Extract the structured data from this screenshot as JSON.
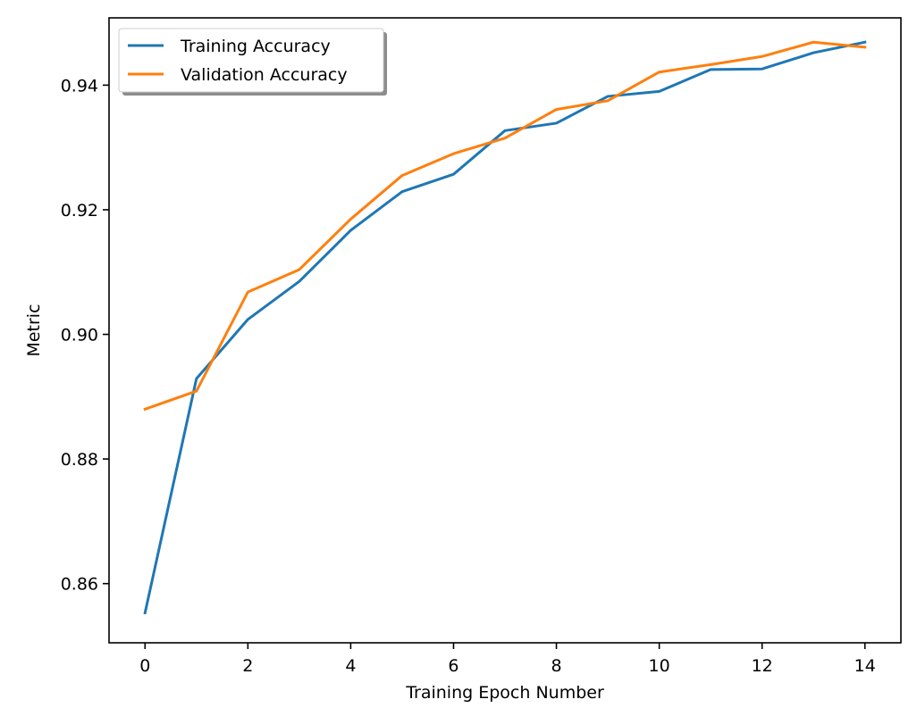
{
  "chart_data": {
    "type": "line",
    "title": "",
    "xlabel": "Training Epoch Number",
    "ylabel": "Metric",
    "xlim": [
      -0.7,
      14.7
    ],
    "ylim": [
      0.8505,
      0.9508
    ],
    "xticks": [
      0,
      2,
      4,
      6,
      8,
      10,
      12,
      14
    ],
    "xtick_labels": [
      "0",
      "2",
      "4",
      "6",
      "8",
      "10",
      "12",
      "14"
    ],
    "yticks": [
      0.86,
      0.88,
      0.9,
      0.92,
      0.94
    ],
    "ytick_labels": [
      "0.86",
      "0.88",
      "0.90",
      "0.92",
      "0.94"
    ],
    "grid": false,
    "legend_position": "top-left",
    "x": [
      0,
      1,
      2,
      3,
      4,
      5,
      6,
      7,
      8,
      9,
      10,
      11,
      12,
      13,
      14
    ],
    "series": [
      {
        "name": "Training Accuracy",
        "color": "#1f77b4",
        "values": [
          0.8553,
          0.8929,
          0.9024,
          0.9085,
          0.9167,
          0.9229,
          0.9257,
          0.9327,
          0.9339,
          0.9382,
          0.939,
          0.9425,
          0.9426,
          0.9452,
          0.9469
        ]
      },
      {
        "name": "Validation Accuracy",
        "color": "#ff7f0e",
        "values": [
          0.888,
          0.8909,
          0.9068,
          0.9104,
          0.9185,
          0.9255,
          0.929,
          0.9315,
          0.9361,
          0.9375,
          0.9421,
          0.9433,
          0.9446,
          0.9469,
          0.9461
        ]
      }
    ]
  }
}
